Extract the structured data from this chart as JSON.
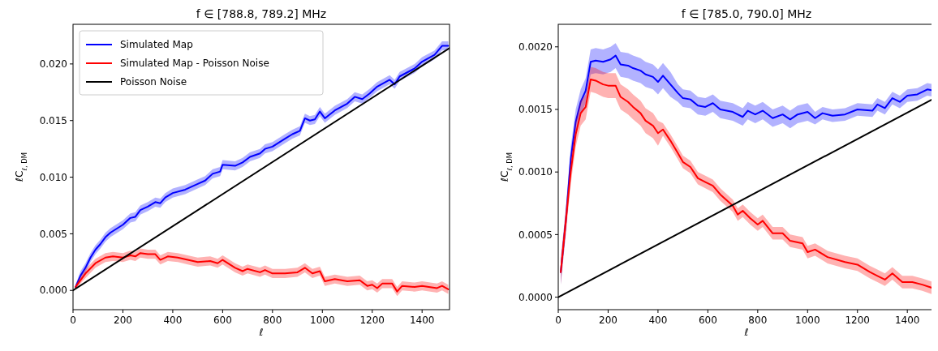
{
  "chart_data": [
    {
      "type": "line",
      "title": "f ∈ [788.8, 789.2] MHz",
      "xlabel": "ℓ",
      "ylabel": "ℓC$_{ℓ, DM}$",
      "xlim": [
        0,
        1510
      ],
      "ylim": [
        -0.0017,
        0.0235
      ],
      "xticks": [
        0,
        200,
        400,
        600,
        800,
        1000,
        1200,
        1400
      ],
      "yticks": [
        {
          "value": 0,
          "label": "0.000"
        },
        {
          "value": 0.005,
          "label": "0.005"
        },
        {
          "value": 0.01,
          "label": "0.010"
        },
        {
          "value": 0.015,
          "label": "0.015"
        },
        {
          "value": 0.02,
          "label": "0.020"
        }
      ],
      "grid": false,
      "legend": "top left",
      "series": [
        {
          "name": "Simulated Map",
          "color": "#0000ff",
          "x": [
            10,
            30,
            50,
            70,
            90,
            110,
            130,
            150,
            200,
            230,
            250,
            270,
            300,
            330,
            350,
            370,
            400,
            450,
            500,
            530,
            560,
            590,
            600,
            650,
            680,
            710,
            750,
            770,
            800,
            850,
            880,
            910,
            930,
            950,
            970,
            990,
            1010,
            1050,
            1100,
            1130,
            1160,
            1190,
            1220,
            1270,
            1290,
            1310,
            1370,
            1400,
            1450,
            1480,
            1505
          ],
          "values": [
            0.0003,
            0.0013,
            0.002,
            0.0029,
            0.0036,
            0.0041,
            0.0047,
            0.0051,
            0.0058,
            0.0064,
            0.0065,
            0.0071,
            0.0074,
            0.0078,
            0.0077,
            0.0082,
            0.0086,
            0.0089,
            0.0094,
            0.0097,
            0.0103,
            0.0105,
            0.0111,
            0.011,
            0.0113,
            0.0118,
            0.0121,
            0.0125,
            0.0127,
            0.0134,
            0.0138,
            0.0141,
            0.0152,
            0.015,
            0.0151,
            0.0158,
            0.0152,
            0.0159,
            0.0165,
            0.0171,
            0.0169,
            0.0174,
            0.018,
            0.0186,
            0.0182,
            0.0189,
            0.0196,
            0.0202,
            0.0208,
            0.0216,
            0.0216
          ],
          "lower": [
            0.0001,
            0.0009,
            0.0016,
            0.0025,
            0.0032,
            0.0037,
            0.0043,
            0.0047,
            0.0054,
            0.006,
            0.0061,
            0.0067,
            0.007,
            0.0074,
            0.0073,
            0.0078,
            0.0082,
            0.0085,
            0.009,
            0.0093,
            0.0099,
            0.0101,
            0.0107,
            0.0106,
            0.0109,
            0.0114,
            0.0117,
            0.0121,
            0.0123,
            0.013,
            0.0134,
            0.0137,
            0.0148,
            0.0146,
            0.0147,
            0.0154,
            0.0148,
            0.0155,
            0.0161,
            0.0167,
            0.0165,
            0.017,
            0.0176,
            0.0182,
            0.0178,
            0.0185,
            0.0192,
            0.0198,
            0.0204,
            0.0212,
            0.0212
          ],
          "upper": [
            0.0005,
            0.0017,
            0.0024,
            0.0033,
            0.004,
            0.0045,
            0.0051,
            0.0055,
            0.0062,
            0.0068,
            0.0069,
            0.0075,
            0.0078,
            0.0082,
            0.0081,
            0.0086,
            0.009,
            0.0093,
            0.0098,
            0.0101,
            0.0107,
            0.0109,
            0.0115,
            0.0114,
            0.0117,
            0.0122,
            0.0125,
            0.0129,
            0.0131,
            0.0138,
            0.0142,
            0.0145,
            0.0156,
            0.0154,
            0.0155,
            0.0162,
            0.0156,
            0.0163,
            0.0169,
            0.0175,
            0.0173,
            0.0178,
            0.0184,
            0.019,
            0.0186,
            0.0193,
            0.02,
            0.0206,
            0.0212,
            0.022,
            0.022
          ]
        },
        {
          "name": "Simulated Map - Poisson Noise",
          "color": "#ff0000",
          "x": [
            10,
            50,
            90,
            130,
            160,
            200,
            230,
            250,
            270,
            300,
            330,
            350,
            380,
            420,
            460,
            500,
            550,
            580,
            600,
            650,
            680,
            700,
            750,
            770,
            800,
            850,
            900,
            930,
            960,
            990,
            1010,
            1050,
            1100,
            1150,
            1180,
            1200,
            1220,
            1240,
            1280,
            1300,
            1320,
            1370,
            1400,
            1460,
            1480,
            1505
          ],
          "values": [
            0.0003,
            0.0015,
            0.0024,
            0.0029,
            0.003,
            0.0029,
            0.0031,
            0.003,
            0.0033,
            0.0032,
            0.0032,
            0.0027,
            0.003,
            0.0029,
            0.0027,
            0.0025,
            0.0026,
            0.0024,
            0.0027,
            0.002,
            0.0017,
            0.0019,
            0.0016,
            0.0018,
            0.0015,
            0.0015,
            0.0016,
            0.002,
            0.0015,
            0.0017,
            0.0008,
            0.001,
            0.0008,
            0.0009,
            0.0004,
            0.0005,
            0.0002,
            0.0006,
            0.0006,
            -0.0001,
            0.0004,
            0.0003,
            0.0004,
            0.0002,
            0.0004,
            0.0001
          ],
          "lower": [
            0.0001,
            0.0011,
            0.002,
            0.0025,
            0.0026,
            0.0025,
            0.0027,
            0.0026,
            0.0029,
            0.0028,
            0.0028,
            0.0023,
            0.0026,
            0.0025,
            0.0023,
            0.0021,
            0.0022,
            0.002,
            0.0023,
            0.0016,
            0.0013,
            0.0015,
            0.0012,
            0.0014,
            0.0011,
            0.0011,
            0.0012,
            0.0016,
            0.0011,
            0.0013,
            0.0004,
            0.0006,
            0.0004,
            0.0005,
            0,
            0.0001,
            -0.0002,
            0.0002,
            0.0002,
            -0.0005,
            0,
            -0.0001,
            0,
            -0.0002,
            0,
            -0.0003
          ],
          "upper": [
            0.0005,
            0.0019,
            0.0028,
            0.0033,
            0.0034,
            0.0033,
            0.0035,
            0.0034,
            0.0037,
            0.0036,
            0.0036,
            0.0031,
            0.0034,
            0.0033,
            0.0031,
            0.0029,
            0.003,
            0.0028,
            0.0031,
            0.0024,
            0.0021,
            0.0023,
            0.002,
            0.0022,
            0.0019,
            0.0019,
            0.002,
            0.0024,
            0.0019,
            0.0021,
            0.0012,
            0.0014,
            0.0012,
            0.0013,
            0.0008,
            0.0009,
            0.0006,
            0.001,
            0.001,
            0.0003,
            0.0008,
            0.0007,
            0.0008,
            0.0006,
            0.0008,
            0.0005
          ]
        },
        {
          "name": "Poisson Noise",
          "color": "#000000",
          "x": [
            0,
            1510
          ],
          "values": [
            0,
            0.0214
          ]
        }
      ]
    },
    {
      "type": "line",
      "title": "f ∈ [785.0, 790.0] MHz",
      "xlabel": "ℓ",
      "ylabel": "ℓC$_{ℓ, DM}$",
      "xlim": [
        0,
        1510
      ],
      "ylim": [
        -0.0001,
        0.00218
      ],
      "xticks": [
        0,
        200,
        400,
        600,
        800,
        1000,
        1200,
        1400
      ],
      "yticks": [
        {
          "value": 0,
          "label": "0.0000"
        },
        {
          "value": 0.0005,
          "label": "0.0005"
        },
        {
          "value": 0.001,
          "label": "0.0010"
        },
        {
          "value": 0.0015,
          "label": "0.0015"
        },
        {
          "value": 0.002,
          "label": "0.0020"
        }
      ],
      "grid": false,
      "legend": false,
      "series": [
        {
          "color": "#0000ff",
          "x": [
            10,
            30,
            50,
            70,
            90,
            110,
            130,
            150,
            180,
            210,
            230,
            250,
            280,
            300,
            330,
            350,
            380,
            400,
            420,
            450,
            480,
            500,
            530,
            560,
            590,
            620,
            650,
            700,
            740,
            760,
            790,
            820,
            860,
            900,
            930,
            960,
            1000,
            1030,
            1060,
            1100,
            1150,
            1200,
            1260,
            1280,
            1310,
            1340,
            1370,
            1400,
            1440,
            1480,
            1505
          ],
          "values": [
            0.0002,
            0.0006,
            0.0011,
            0.0014,
            0.00156,
            0.00165,
            0.00188,
            0.00189,
            0.00188,
            0.0019,
            0.00193,
            0.00186,
            0.00185,
            0.00183,
            0.00181,
            0.00178,
            0.00176,
            0.00172,
            0.00177,
            0.0017,
            0.00163,
            0.00159,
            0.00158,
            0.00153,
            0.00152,
            0.00155,
            0.0015,
            0.00148,
            0.00144,
            0.00149,
            0.00146,
            0.00149,
            0.00143,
            0.00146,
            0.00142,
            0.00146,
            0.00148,
            0.00143,
            0.00147,
            0.00145,
            0.00146,
            0.0015,
            0.00149,
            0.00154,
            0.00151,
            0.00159,
            0.00156,
            0.00161,
            0.00162,
            0.00166,
            0.00165
          ],
          "lower": [
            0.0001,
            0.0005,
            0.001,
            0.0013,
            0.00146,
            0.00155,
            0.00178,
            0.00179,
            0.00178,
            0.0018,
            0.00183,
            0.00176,
            0.00175,
            0.00173,
            0.00171,
            0.00168,
            0.00166,
            0.00162,
            0.00167,
            0.0016,
            0.00156,
            0.00152,
            0.00151,
            0.00146,
            0.00145,
            0.00148,
            0.00143,
            0.00141,
            0.00137,
            0.00142,
            0.00139,
            0.00142,
            0.00136,
            0.00139,
            0.00135,
            0.00139,
            0.00141,
            0.00138,
            0.00142,
            0.0014,
            0.00141,
            0.00145,
            0.00144,
            0.00149,
            0.00146,
            0.00154,
            0.00151,
            0.00156,
            0.00157,
            0.00161,
            0.0016
          ],
          "upper": [
            0.0003,
            0.0007,
            0.0012,
            0.0015,
            0.00166,
            0.00175,
            0.00198,
            0.00199,
            0.00198,
            0.002,
            0.00203,
            0.00196,
            0.00195,
            0.00193,
            0.00191,
            0.00188,
            0.00186,
            0.00182,
            0.00187,
            0.0018,
            0.0017,
            0.00166,
            0.00165,
            0.0016,
            0.00159,
            0.00162,
            0.00157,
            0.00155,
            0.00151,
            0.00156,
            0.00153,
            0.00156,
            0.0015,
            0.00153,
            0.00149,
            0.00153,
            0.00155,
            0.00148,
            0.00152,
            0.0015,
            0.00151,
            0.00155,
            0.00154,
            0.00159,
            0.00156,
            0.00164,
            0.00161,
            0.00166,
            0.00167,
            0.00171,
            0.0017
          ]
        },
        {
          "color": "#ff0000",
          "x": [
            10,
            30,
            50,
            70,
            90,
            110,
            130,
            150,
            180,
            200,
            230,
            250,
            280,
            300,
            330,
            350,
            380,
            400,
            420,
            450,
            480,
            500,
            530,
            560,
            590,
            620,
            650,
            700,
            720,
            740,
            770,
            800,
            820,
            860,
            900,
            930,
            980,
            1000,
            1030,
            1080,
            1150,
            1200,
            1250,
            1280,
            1310,
            1340,
            1380,
            1420,
            1460,
            1505
          ],
          "values": [
            0.0002,
            0.0006,
            0.001,
            0.0013,
            0.00147,
            0.00152,
            0.00174,
            0.00173,
            0.0017,
            0.00169,
            0.00169,
            0.0016,
            0.00156,
            0.00152,
            0.00147,
            0.00141,
            0.00137,
            0.00131,
            0.00134,
            0.00125,
            0.00115,
            0.00108,
            0.00104,
            0.00095,
            0.00092,
            0.00089,
            0.00082,
            0.00073,
            0.00066,
            0.00069,
            0.00063,
            0.00058,
            0.00061,
            0.00051,
            0.00051,
            0.00045,
            0.00043,
            0.00036,
            0.00038,
            0.00032,
            0.00028,
            0.00026,
            0.0002,
            0.00017,
            0.00014,
            0.00019,
            0.00012,
            0.00012,
            0.0001,
            7e-05
          ],
          "lower": [
            0.0001,
            0.0005,
            0.0009,
            0.0012,
            0.00137,
            0.00142,
            0.00164,
            0.00163,
            0.0016,
            0.00159,
            0.00159,
            0.0015,
            0.00146,
            0.00142,
            0.00137,
            0.00131,
            0.00127,
            0.00121,
            0.00129,
            0.0012,
            0.0011,
            0.00103,
            0.00099,
            0.0009,
            0.00087,
            0.00084,
            0.00077,
            0.00068,
            0.00061,
            0.00064,
            0.00058,
            0.00053,
            0.00056,
            0.00046,
            0.00046,
            0.0004,
            0.00038,
            0.00031,
            0.00033,
            0.00027,
            0.00023,
            0.00021,
            0.00015,
            0.00012,
            9e-05,
            0.00014,
            7e-05,
            7e-05,
            5e-05,
            2e-05
          ],
          "upper": [
            0.0003,
            0.0007,
            0.0011,
            0.0014,
            0.00157,
            0.00162,
            0.00184,
            0.00183,
            0.0018,
            0.00179,
            0.00179,
            0.0017,
            0.00166,
            0.00162,
            0.00157,
            0.00151,
            0.00147,
            0.00141,
            0.00139,
            0.0013,
            0.0012,
            0.00113,
            0.00109,
            0.001,
            0.00097,
            0.00094,
            0.00087,
            0.00078,
            0.00071,
            0.00074,
            0.00068,
            0.00063,
            0.00066,
            0.00056,
            0.00056,
            0.0005,
            0.00048,
            0.00041,
            0.00043,
            0.00037,
            0.00033,
            0.00031,
            0.00025,
            0.00022,
            0.00019,
            0.00024,
            0.00017,
            0.00017,
            0.00015,
            0.00012
          ]
        },
        {
          "color": "#000000",
          "x": [
            0,
            1510
          ],
          "values": [
            0,
            0.00159
          ]
        }
      ]
    }
  ]
}
